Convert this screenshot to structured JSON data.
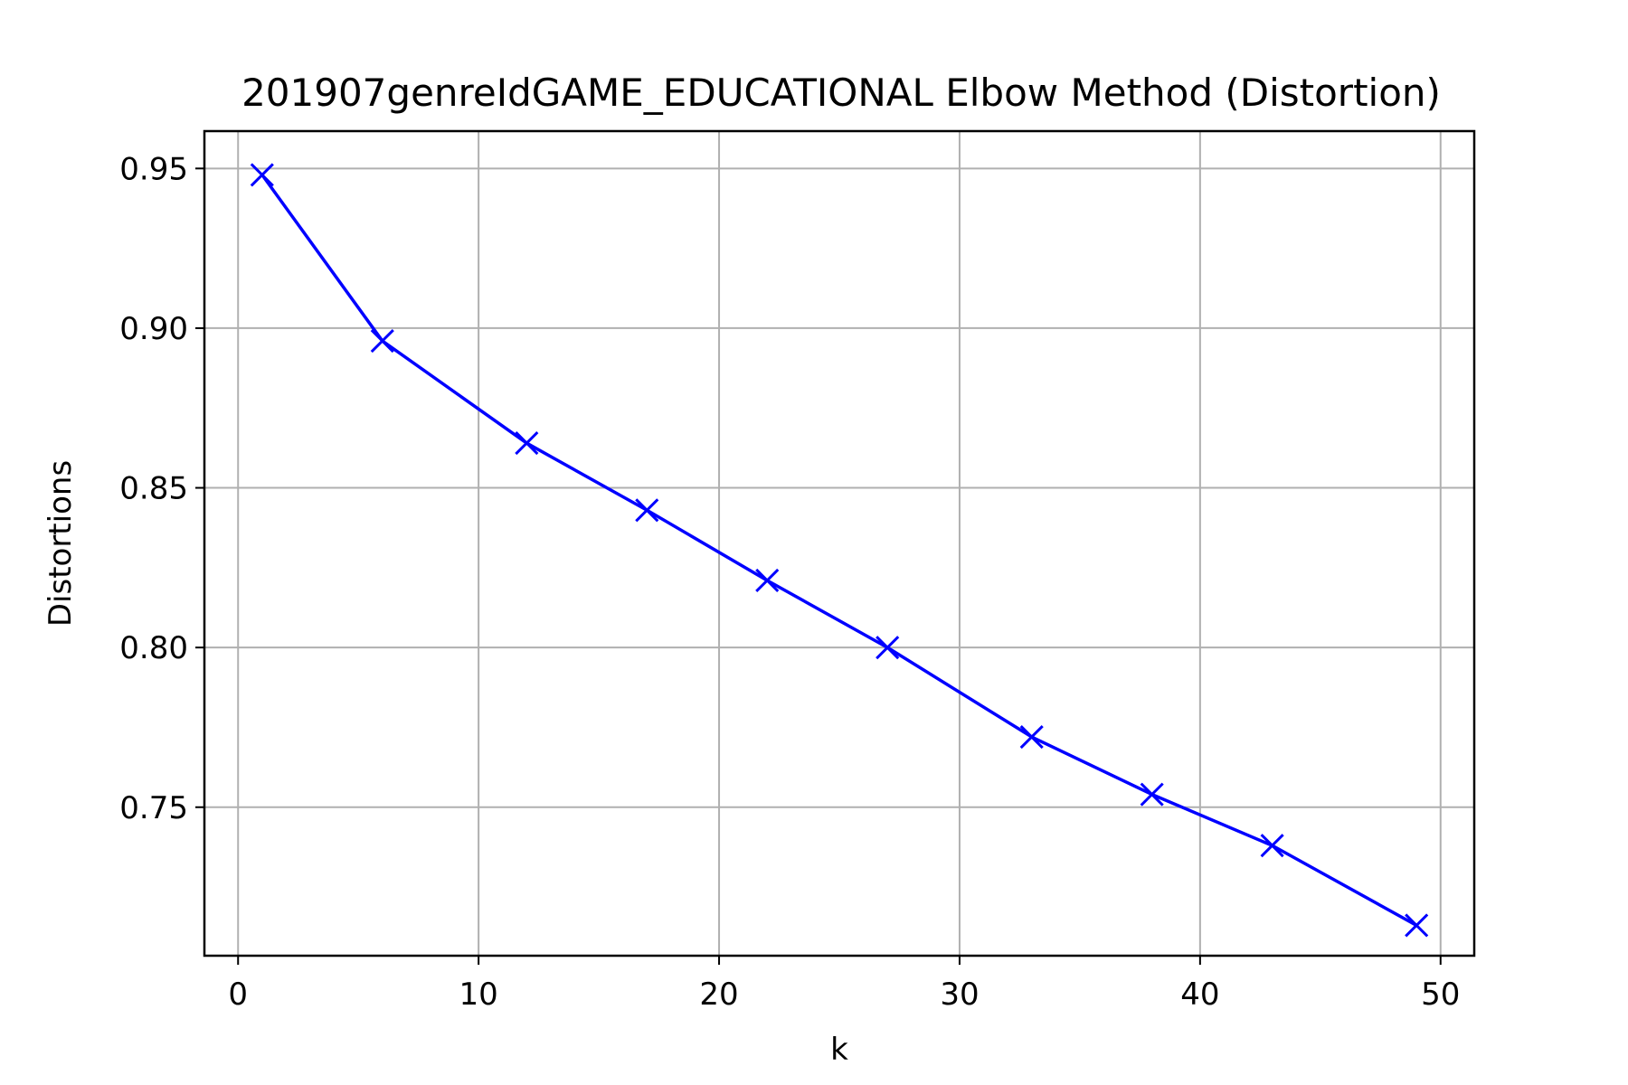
{
  "chart_data": {
    "type": "line",
    "title": "201907genreIdGAME_EDUCATIONAL Elbow Method (Distortion)",
    "xlabel": "k",
    "ylabel": "Distortions",
    "xlim": [
      -1.4,
      51.4
    ],
    "ylim": [
      0.7035,
      0.9617
    ],
    "x_ticks": [
      0,
      10,
      20,
      30,
      40,
      50
    ],
    "x_tick_labels": [
      "0",
      "10",
      "20",
      "30",
      "40",
      "50"
    ],
    "y_ticks": [
      0.75,
      0.8,
      0.85,
      0.9,
      0.95
    ],
    "y_tick_labels": [
      "0.75",
      "0.80",
      "0.85",
      "0.90",
      "0.95"
    ],
    "grid": true,
    "marker": "x",
    "series": [
      {
        "color": "#0000ff",
        "x": [
          1,
          6,
          12,
          17,
          22,
          27,
          33,
          38,
          43,
          49
        ],
        "y": [
          0.948,
          0.896,
          0.864,
          0.843,
          0.821,
          0.8,
          0.772,
          0.754,
          0.738,
          0.713
        ]
      }
    ]
  }
}
